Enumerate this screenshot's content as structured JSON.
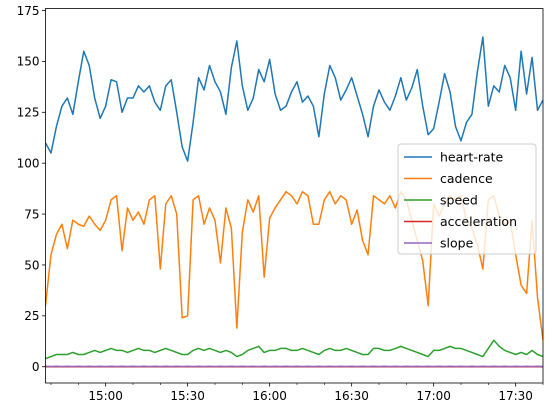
{
  "chart_data": {
    "type": "line",
    "title": "",
    "xlabel": "",
    "ylabel": "",
    "xlim": [
      "14:38",
      "17:40"
    ],
    "ylim": [
      -8,
      176
    ],
    "grid": false,
    "legend_position": "center-right",
    "x_ticks": [
      "15:00",
      "15:30",
      "16:00",
      "16:30",
      "17:00",
      "17:30"
    ],
    "y_ticks": [
      0,
      25,
      50,
      75,
      100,
      125,
      150,
      175
    ],
    "x": [
      "14:38",
      "14:40",
      "14:42",
      "14:44",
      "14:46",
      "14:48",
      "14:50",
      "14:52",
      "14:54",
      "14:56",
      "14:58",
      "15:00",
      "15:02",
      "15:04",
      "15:06",
      "15:08",
      "15:10",
      "15:12",
      "15:14",
      "15:16",
      "15:18",
      "15:20",
      "15:22",
      "15:24",
      "15:26",
      "15:28",
      "15:30",
      "15:32",
      "15:34",
      "15:36",
      "15:38",
      "15:40",
      "15:42",
      "15:44",
      "15:46",
      "15:48",
      "15:50",
      "15:52",
      "15:54",
      "15:56",
      "15:58",
      "16:00",
      "16:02",
      "16:04",
      "16:06",
      "16:08",
      "16:10",
      "16:12",
      "16:14",
      "16:16",
      "16:18",
      "16:20",
      "16:22",
      "16:24",
      "16:26",
      "16:28",
      "16:30",
      "16:32",
      "16:34",
      "16:36",
      "16:38",
      "16:40",
      "16:42",
      "16:44",
      "16:46",
      "16:48",
      "16:50",
      "16:52",
      "16:54",
      "16:56",
      "16:58",
      "17:00",
      "17:02",
      "17:04",
      "17:06",
      "17:08",
      "17:10",
      "17:12",
      "17:14",
      "17:16",
      "17:18",
      "17:20",
      "17:22",
      "17:24",
      "17:26",
      "17:28",
      "17:30",
      "17:32",
      "17:34",
      "17:36",
      "17:38",
      "17:40"
    ],
    "series": [
      {
        "name": "heart-rate",
        "color": "#1f77b4",
        "values": [
          110,
          105,
          118,
          128,
          132,
          124,
          140,
          155,
          148,
          132,
          122,
          128,
          141,
          140,
          125,
          132,
          132,
          138,
          135,
          138,
          130,
          126,
          138,
          141,
          125,
          108,
          101,
          120,
          142,
          136,
          148,
          140,
          135,
          124,
          147,
          160,
          138,
          126,
          132,
          146,
          140,
          151,
          134,
          126,
          128,
          135,
          140,
          130,
          133,
          128,
          113,
          134,
          148,
          142,
          131,
          136,
          142,
          133,
          124,
          113,
          128,
          136,
          130,
          126,
          133,
          142,
          131,
          137,
          146,
          128,
          114,
          117,
          130,
          144,
          135,
          118,
          111,
          120,
          124,
          145,
          162,
          128,
          138,
          135,
          148,
          142,
          126,
          155,
          134,
          152,
          126,
          131
        ]
      },
      {
        "name": "cadence",
        "color": "#ff7f0e",
        "values": [
          30,
          55,
          65,
          70,
          58,
          72,
          70,
          69,
          74,
          70,
          67,
          72,
          82,
          84,
          57,
          78,
          72,
          76,
          70,
          82,
          84,
          48,
          80,
          84,
          75,
          24,
          25,
          82,
          84,
          70,
          78,
          72,
          51,
          78,
          68,
          19,
          66,
          82,
          76,
          84,
          44,
          73,
          78,
          82,
          86,
          84,
          80,
          86,
          84,
          70,
          70,
          82,
          86,
          80,
          84,
          82,
          70,
          77,
          62,
          55,
          84,
          82,
          80,
          84,
          78,
          86,
          82,
          72,
          62,
          52,
          30,
          80,
          74,
          80,
          84,
          82,
          84,
          72,
          68,
          60,
          48,
          82,
          84,
          74,
          70,
          72,
          55,
          40,
          36,
          72,
          34,
          13
        ]
      },
      {
        "name": "speed",
        "color": "#2ca02c",
        "values": [
          4,
          5,
          6,
          6,
          6,
          7,
          6,
          6,
          7,
          8,
          7,
          8,
          9,
          8,
          8,
          7,
          8,
          9,
          8,
          8,
          7,
          8,
          9,
          8,
          7,
          6,
          6,
          8,
          9,
          8,
          9,
          8,
          7,
          8,
          7,
          5,
          6,
          8,
          9,
          10,
          7,
          8,
          8,
          9,
          9,
          8,
          8,
          9,
          8,
          7,
          6,
          8,
          9,
          8,
          8,
          9,
          8,
          7,
          6,
          6,
          9,
          9,
          8,
          8,
          9,
          10,
          9,
          8,
          7,
          6,
          5,
          8,
          8,
          9,
          10,
          9,
          9,
          8,
          7,
          6,
          5,
          9,
          13,
          10,
          8,
          7,
          6,
          7,
          6,
          8,
          6,
          5
        ]
      },
      {
        "name": "acceleration",
        "color": "#d62728",
        "values": [
          0,
          0,
          0,
          0,
          0,
          0,
          0,
          0,
          0,
          0,
          0,
          0,
          0,
          0,
          0,
          0,
          0,
          0,
          0,
          0,
          0,
          0,
          0,
          0,
          0,
          0,
          0,
          0,
          0,
          0,
          0,
          0,
          0,
          0,
          0,
          0,
          0,
          0,
          0,
          0,
          0,
          0,
          0,
          0,
          0,
          0,
          0,
          0,
          0,
          0,
          0,
          0,
          0,
          0,
          0,
          0,
          0,
          0,
          0,
          0,
          0,
          0,
          0,
          0,
          0,
          0,
          0,
          0,
          0,
          0,
          0,
          0,
          0,
          0,
          0,
          0,
          0,
          0,
          0,
          0,
          0,
          0,
          0,
          0,
          0,
          0,
          0,
          0,
          0,
          0,
          0,
          0
        ]
      },
      {
        "name": "slope",
        "color": "#9467bd",
        "values": [
          0.2,
          0.1,
          0.2,
          0.1,
          0.2,
          0.1,
          0.2,
          0.1,
          0.2,
          0.1,
          0.2,
          0.1,
          0.2,
          0.1,
          0.2,
          0.1,
          0.2,
          0.1,
          0.2,
          0.1,
          0.2,
          0.1,
          0.2,
          0.1,
          0.2,
          0.1,
          0.2,
          0.1,
          0.2,
          0.1,
          0.2,
          0.1,
          0.2,
          0.1,
          0.2,
          0.1,
          0.2,
          0.1,
          0.2,
          0.1,
          0.2,
          0.1,
          0.2,
          0.1,
          0.2,
          0.1,
          0.2,
          0.1,
          0.2,
          0.1,
          0.2,
          0.1,
          0.2,
          0.1,
          0.2,
          0.1,
          0.2,
          0.1,
          0.2,
          0.1,
          0.2,
          0.1,
          0.2,
          0.1,
          0.2,
          0.1,
          0.2,
          0.1,
          0.2,
          0.1,
          0.2,
          0.1,
          0.2,
          0.1,
          0.2,
          0.1,
          0.2,
          0.1,
          0.2,
          0.1,
          0.2,
          0.1,
          0.2,
          0.1,
          0.2,
          0.1,
          0.2,
          0.1,
          0.2,
          0.1,
          0.2,
          0.1
        ]
      }
    ]
  }
}
